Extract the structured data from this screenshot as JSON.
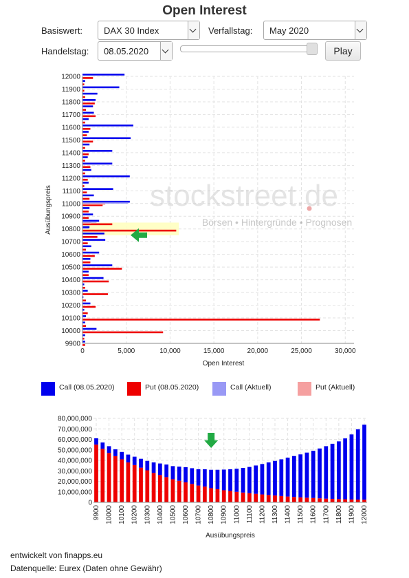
{
  "header": {
    "title": "Open Interest"
  },
  "controls": {
    "basiswert_label": "Basiswert:",
    "basiswert_value": "DAX 30 Index",
    "verfallstag_label": "Verfallstag:",
    "verfallstag_value": "May 2020",
    "handelstag_label": "Handelstag:",
    "handelstag_value": "08.05.2020",
    "play_label": "Play"
  },
  "watermark": {
    "brand": "stockstreet.de",
    "tagline": "Börsen • Hintergründe • Prognosen"
  },
  "colors": {
    "call": "#0000ee",
    "put": "#ee0000",
    "call_aktuell": "#9999f5",
    "put_aktuell": "#f5a0a0",
    "highlight": "#ffffc0",
    "arrow": "#22aa44"
  },
  "legend": [
    {
      "label": "Call (08.05.2020)",
      "color": "#0000ee"
    },
    {
      "label": "Put (08.05.2020)",
      "color": "#ee0000"
    },
    {
      "label": "Call (Aktuell)",
      "color": "#9999f5"
    },
    {
      "label": "Put (Aktuell)",
      "color": "#f5a0a0"
    }
  ],
  "chart_data": [
    {
      "type": "bar",
      "orientation": "horizontal",
      "xlabel": "Open Interest",
      "ylabel": "Ausübungspreis",
      "xlim": [
        0,
        31000
      ],
      "x_ticks": [
        "0",
        "5,000",
        "10,000",
        "15,000",
        "20,000",
        "25,000",
        "30,000"
      ],
      "x_tick_values": [
        0,
        5000,
        10000,
        15000,
        20000,
        25000,
        30000
      ],
      "y_ticks": [
        "12000",
        "11900",
        "11800",
        "11700",
        "11600",
        "11500",
        "11400",
        "11300",
        "11200",
        "11100",
        "11000",
        "10900",
        "10800",
        "10700",
        "10600",
        "10500",
        "10400",
        "10300",
        "10200",
        "10100",
        "10000",
        "9900"
      ],
      "y_tick_values": [
        12000,
        11900,
        11800,
        11700,
        11600,
        11500,
        11400,
        11300,
        11200,
        11100,
        11000,
        10900,
        10800,
        10700,
        10600,
        10500,
        10400,
        10300,
        10200,
        10100,
        10000,
        9900
      ],
      "highlight_strike": 10800,
      "strikes": [
        12000,
        11950,
        11900,
        11850,
        11800,
        11750,
        11700,
        11650,
        11600,
        11550,
        11500,
        11450,
        11400,
        11350,
        11300,
        11250,
        11200,
        11150,
        11100,
        11050,
        11000,
        10950,
        10900,
        10850,
        10800,
        10750,
        10700,
        10650,
        10600,
        10550,
        10500,
        10450,
        10400,
        10350,
        10300,
        10250,
        10200,
        10150,
        10100,
        10050,
        10000,
        9950,
        9900
      ],
      "series": [
        {
          "name": "Call (08.05.2020)",
          "values": [
            4800,
            300,
            4200,
            1700,
            1500,
            1200,
            1300,
            700,
            5800,
            700,
            5500,
            800,
            3400,
            600,
            3400,
            1000,
            5400,
            700,
            3500,
            1300,
            5400,
            800,
            1200,
            1900,
            800,
            2500,
            2600,
            1000,
            1900,
            900,
            3400,
            700,
            2400,
            200,
            600,
            100,
            900,
            200,
            400,
            300,
            1600,
            300,
            300
          ]
        },
        {
          "name": "Put (08.05.2020)",
          "values": [
            1200,
            200,
            200,
            300,
            1400,
            400,
            1500,
            300,
            900,
            500,
            1200,
            300,
            700,
            300,
            900,
            300,
            600,
            200,
            500,
            800,
            2300,
            700,
            700,
            3400,
            10700,
            1700,
            600,
            400,
            1400,
            900,
            4500,
            700,
            3000,
            300,
            2900,
            400,
            1500,
            600,
            27100,
            400,
            9200,
            200,
            300
          ]
        },
        {
          "name": "Call (Aktuell)",
          "values": [
            0,
            0,
            0,
            0,
            0,
            0,
            0,
            0,
            0,
            0,
            0,
            0,
            0,
            0,
            0,
            0,
            0,
            0,
            0,
            0,
            5200,
            0,
            0,
            1600,
            700,
            0,
            0,
            0,
            0,
            0,
            0,
            0,
            0,
            0,
            0,
            0,
            0,
            0,
            0,
            0,
            0,
            0,
            0
          ]
        },
        {
          "name": "Put (Aktuell)",
          "values": [
            0,
            0,
            0,
            0,
            0,
            0,
            0,
            0,
            0,
            0,
            0,
            0,
            0,
            0,
            0,
            0,
            0,
            0,
            0,
            0,
            2600,
            0,
            0,
            1000,
            0,
            0,
            0,
            0,
            0,
            0,
            0,
            0,
            0,
            0,
            0,
            0,
            0,
            0,
            0,
            0,
            0,
            0,
            0
          ]
        }
      ]
    },
    {
      "type": "bar",
      "stacked": true,
      "xlabel": "Ausübungspreis",
      "ylim": [
        0,
        80000000
      ],
      "y_ticks": [
        "0",
        "10,000,000",
        "20,000,000",
        "30,000,000",
        "40,000,000",
        "50,000,000",
        "60,000,000",
        "70,000,000",
        "80,000,000"
      ],
      "y_tick_values": [
        0,
        10000000,
        20000000,
        30000000,
        40000000,
        50000000,
        60000000,
        70000000,
        80000000
      ],
      "x_ticks": [
        "9900",
        "10000",
        "10100",
        "10200",
        "10300",
        "10400",
        "10500",
        "10600",
        "10700",
        "10800",
        "10900",
        "11000",
        "11100",
        "11200",
        "11300",
        "11400",
        "11500",
        "11600",
        "11700",
        "11800",
        "11900",
        "12000"
      ],
      "highlight_strike": 10800,
      "categories": [
        9900,
        9950,
        10000,
        10050,
        10100,
        10150,
        10200,
        10250,
        10300,
        10350,
        10400,
        10450,
        10500,
        10550,
        10600,
        10650,
        10700,
        10750,
        10800,
        10850,
        10900,
        10950,
        11000,
        11050,
        11100,
        11150,
        11200,
        11250,
        11300,
        11350,
        11400,
        11450,
        11500,
        11550,
        11600,
        11650,
        11700,
        11750,
        11800,
        11850,
        11900,
        11950,
        12000
      ],
      "series": [
        {
          "name": "Put",
          "values": [
            55000000,
            51000000,
            47000000,
            44000000,
            41000000,
            38000000,
            35500000,
            33000000,
            30500000,
            28000000,
            26000000,
            24000000,
            22000000,
            20500000,
            19000000,
            17500000,
            16000000,
            15000000,
            13500000,
            12500000,
            11500000,
            10800000,
            10000000,
            9300000,
            8700000,
            8100000,
            7500000,
            7000000,
            6500000,
            6000000,
            5500000,
            5100000,
            4700000,
            4400000,
            4100000,
            3800000,
            3500000,
            3300000,
            3100000,
            2900000,
            2700000,
            2600000,
            2500000
          ]
        },
        {
          "name": "Call",
          "values": [
            6000000,
            6000000,
            6500000,
            6500000,
            7000000,
            7500000,
            8000000,
            8500000,
            9000000,
            10000000,
            11000000,
            12000000,
            12500000,
            13500000,
            14500000,
            15000000,
            15500000,
            16500000,
            17500000,
            18500000,
            19700000,
            20700000,
            22000000,
            23500000,
            25000000,
            27000000,
            29000000,
            31000000,
            33000000,
            35000000,
            37000000,
            39000000,
            41000000,
            43000000,
            45000000,
            47500000,
            50000000,
            52500000,
            55000000,
            58000000,
            62000000,
            67000000,
            71500000
          ]
        }
      ]
    }
  ],
  "footer": {
    "credit": "entwickelt von finapps.eu",
    "source": "Datenquelle: Eurex (Daten ohne Gewähr)"
  }
}
